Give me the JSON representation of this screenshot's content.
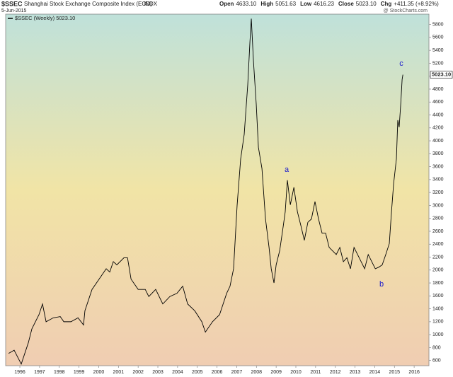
{
  "header": {
    "symbol": "$SSEC",
    "name": "Shanghai Stock Exchange Composite Index (EOD)",
    "exchange": "INDX",
    "date": "5-Jun-2015",
    "source": "@ StockCharts.com",
    "quote": [
      {
        "label": "Open",
        "value": "4633.10"
      },
      {
        "label": "High",
        "value": "5051.63"
      },
      {
        "label": "Low",
        "value": "4616.23"
      },
      {
        "label": "Close",
        "value": "5023.10"
      },
      {
        "label": "Chg",
        "value": "+411.35 (+8.92%)"
      }
    ]
  },
  "chart_data": {
    "type": "line",
    "log_scale": false,
    "grid": false,
    "x": [
      1995.43,
      1995.71,
      1996.07,
      1996.43,
      1996.61,
      1996.97,
      1997.15,
      1997.33,
      1997.69,
      1998.05,
      1998.23,
      1998.59,
      1998.95,
      1999.23,
      1999.3,
      1999.66,
      2000.02,
      2000.38,
      2000.56,
      2000.74,
      2000.92,
      2001.28,
      2001.46,
      2001.64,
      2002.0,
      2002.36,
      2002.54,
      2002.89,
      2003.25,
      2003.61,
      2003.97,
      2004.26,
      2004.51,
      2004.87,
      2005.23,
      2005.41,
      2005.77,
      2006.13,
      2006.49,
      2006.66,
      2006.84,
      2007.02,
      2007.2,
      2007.38,
      2007.56,
      2007.67,
      2007.74,
      2007.85,
      2007.99,
      2008.1,
      2008.28,
      2008.46,
      2008.64,
      2008.75,
      2008.89,
      2009.0,
      2009.18,
      2009.36,
      2009.46,
      2009.57,
      2009.72,
      2009.9,
      2010.08,
      2010.26,
      2010.43,
      2010.61,
      2010.79,
      2010.97,
      2011.15,
      2011.33,
      2011.51,
      2011.69,
      2012.05,
      2012.23,
      2012.41,
      2012.59,
      2012.77,
      2012.95,
      2013.13,
      2013.31,
      2013.49,
      2013.67,
      2013.85,
      2014.03,
      2014.21,
      2014.38,
      2014.56,
      2014.74,
      2014.85,
      2014.96,
      2015.1,
      2015.17,
      2015.24,
      2015.32,
      2015.39,
      2015.43
    ],
    "series": [
      {
        "name": "$SSEC (Weekly) 5023.10",
        "color": "#000000",
        "values": [
          710,
          760,
          545,
          875,
          1090,
          1310,
          1475,
          1200,
          1260,
          1280,
          1200,
          1200,
          1260,
          1150,
          1370,
          1700,
          1860,
          2020,
          1970,
          2130,
          2080,
          2190,
          2190,
          1860,
          1700,
          1700,
          1590,
          1700,
          1475,
          1590,
          1640,
          1750,
          1475,
          1370,
          1200,
          1040,
          1200,
          1310,
          1640,
          1750,
          2020,
          3000,
          3720,
          4100,
          4870,
          5530,
          5890,
          5230,
          4570,
          3900,
          3570,
          2790,
          2350,
          2020,
          1800,
          2080,
          2300,
          2680,
          2900,
          3390,
          3010,
          3280,
          2900,
          2680,
          2460,
          2740,
          2790,
          3060,
          2790,
          2570,
          2570,
          2350,
          2240,
          2350,
          2130,
          2190,
          2020,
          2350,
          2240,
          2130,
          2020,
          2240,
          2130,
          2020,
          2045,
          2080,
          2240,
          2410,
          2900,
          3340,
          3720,
          4320,
          4210,
          4570,
          4950,
          5023.1
        ],
        "last_label": "5023.10"
      }
    ],
    "xlim": [
      1995.28,
      2016.75
    ],
    "xticks": [
      1996,
      1997,
      1998,
      1999,
      2000,
      2001,
      2002,
      2003,
      2004,
      2005,
      2006,
      2007,
      2008,
      2009,
      2010,
      2011,
      2012,
      2013,
      2014,
      2015,
      2016
    ],
    "ylim": [
      520,
      5960
    ],
    "yticks": [
      600,
      800,
      1000,
      1200,
      1400,
      1600,
      1800,
      2000,
      2200,
      2400,
      2600,
      2800,
      3000,
      3200,
      3400,
      3600,
      3800,
      4000,
      4200,
      4400,
      4600,
      4800,
      5000,
      5200,
      5400,
      5600,
      5800
    ],
    "annotations": [
      "a",
      "b",
      "c"
    ],
    "annotation_color": "#1a1acc"
  }
}
